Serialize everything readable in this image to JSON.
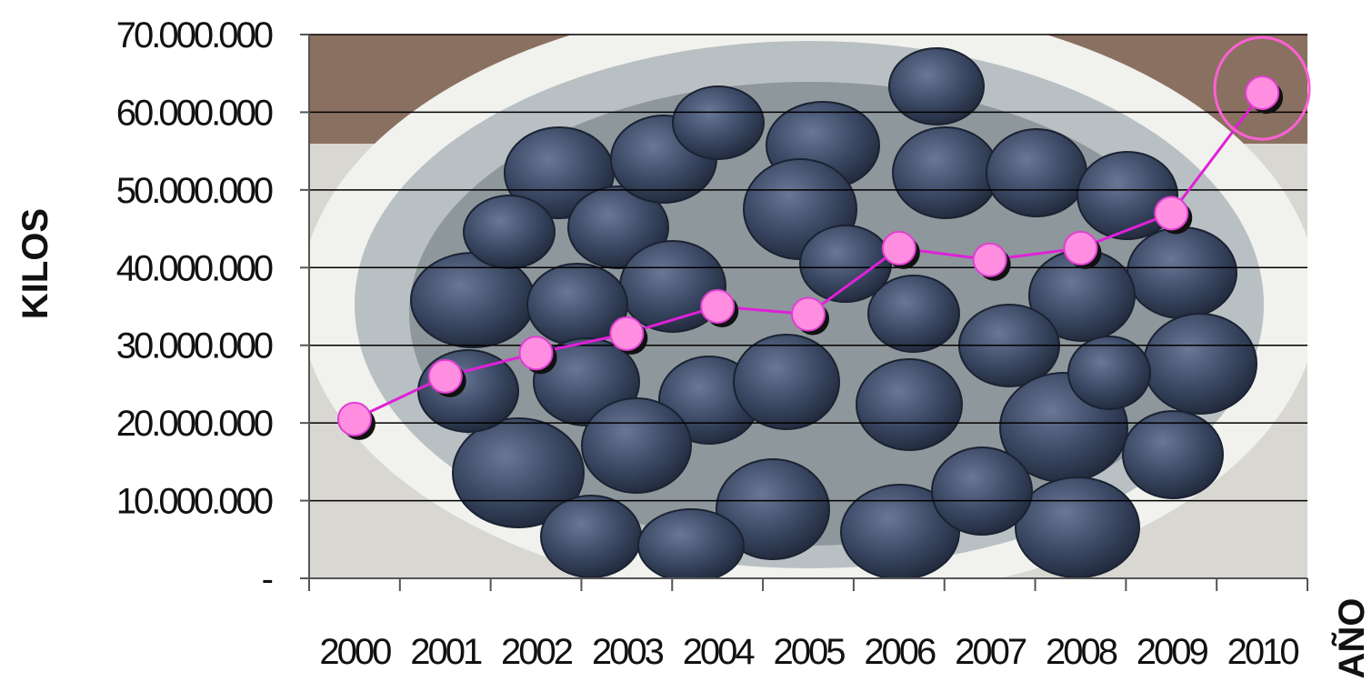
{
  "chart_data": {
    "type": "line",
    "title": "",
    "xlabel": "AÑO",
    "ylabel": "KILOS",
    "categories": [
      "2000",
      "2001",
      "2002",
      "2003",
      "2004",
      "2005",
      "2006",
      "2007",
      "2008",
      "2009",
      "2010"
    ],
    "values": [
      20500000,
      26000000,
      29000000,
      31500000,
      35000000,
      34000000,
      42500000,
      41000000,
      42500000,
      47000000,
      62500000
    ],
    "ylim": [
      0,
      70000000
    ],
    "y_ticks": [
      0,
      10000000,
      20000000,
      30000000,
      40000000,
      50000000,
      60000000,
      70000000
    ],
    "y_tick_labels": [
      "-",
      "10.000.000",
      "20.000.000",
      "30.000.000",
      "40.000.000",
      "50.000.000",
      "60.000.000",
      "70.000.000"
    ],
    "grid": true,
    "highlighted_category": "2010",
    "colors": {
      "line": "#e020d8",
      "marker_fill": "#ff8ee0",
      "marker_shadow": "#111111",
      "highlight_ring": "#ff5fd6",
      "grid": "#000000",
      "plum": "#3c4a66",
      "basket": "#b9c0c3",
      "background_wall": "#8a7060"
    },
    "background": "photo of plums in a basket"
  }
}
